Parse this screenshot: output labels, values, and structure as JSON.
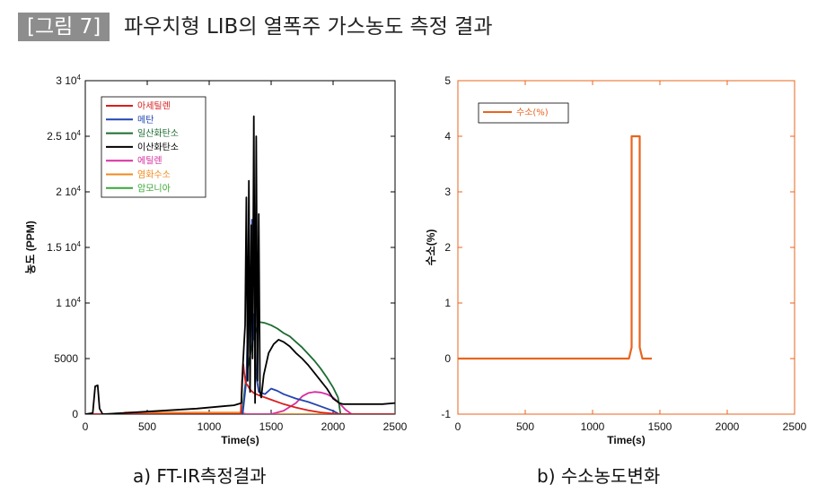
{
  "figure": {
    "tag": "[그림 7]",
    "title": "파우치형 LIB의 열폭주 가스농도 측정 결과",
    "caption_a": "a) FT-IR측정결과",
    "caption_b": "b) 수소농도변화"
  },
  "colors": {
    "acetylene": "#d81e1e",
    "methane": "#2245b0",
    "co": "#1e6b32",
    "co2": "#000000",
    "ethylene": "#d62ea0",
    "hcl": "#f08a1c",
    "nh3": "#3aa635",
    "hydrogen": "#e8641e"
  },
  "chart_data": [
    {
      "type": "line",
      "xlabel": "Time(s)",
      "ylabel": "농도 (PPM)",
      "xlim": [
        0,
        2500
      ],
      "ylim": [
        0,
        30000
      ],
      "xticks": [
        0,
        500,
        1000,
        1500,
        2000,
        2500
      ],
      "yticks": [
        {
          "v": 0,
          "label": "0"
        },
        {
          "v": 5000,
          "label": "5000"
        },
        {
          "v": 10000,
          "label": "1 10",
          "exp": "4"
        },
        {
          "v": 15000,
          "label": "1.5 10",
          "exp": "4"
        },
        {
          "v": 20000,
          "label": "2 10",
          "exp": "4"
        },
        {
          "v": 25000,
          "label": "2.5 10",
          "exp": "4"
        },
        {
          "v": 30000,
          "label": "3 10",
          "exp": "4"
        }
      ],
      "legend_position": "top-left",
      "series": [
        {
          "name": "아세틸렌",
          "color": "#d81e1e",
          "x": [
            0,
            1255,
            1265,
            1275,
            1285,
            1295,
            1310,
            1330,
            1360,
            1400,
            1500,
            1600,
            1700,
            1800,
            1900,
            2000,
            2050,
            2500
          ],
          "y": [
            0,
            0,
            3000,
            4500,
            3500,
            2800,
            2600,
            2200,
            1900,
            1700,
            1300,
            900,
            600,
            350,
            150,
            50,
            0,
            0
          ]
        },
        {
          "name": "메탄",
          "color": "#2245b0",
          "x": [
            0,
            1270,
            1300,
            1320,
            1330,
            1345,
            1350,
            1360,
            1380,
            1400,
            1450,
            1500,
            1550,
            1600,
            1700,
            1800,
            1900,
            2000,
            2050,
            2500
          ],
          "y": [
            0,
            0,
            3000,
            12000,
            5000,
            17500,
            6000,
            9000,
            3500,
            2000,
            1800,
            2300,
            2100,
            1800,
            1400,
            1100,
            700,
            300,
            0,
            0
          ]
        },
        {
          "name": "일산화탄소",
          "color": "#1e6b32",
          "x": [
            0,
            1265,
            1300,
            1350,
            1400,
            1450,
            1500,
            1550,
            1600,
            1650,
            1700,
            1750,
            1800,
            1850,
            1900,
            1950,
            2000,
            2040,
            2060,
            2500
          ],
          "y": [
            0,
            0,
            3500,
            6500,
            8300,
            8200,
            8000,
            7700,
            7300,
            7000,
            6500,
            6000,
            5400,
            4800,
            4100,
            3300,
            2400,
            1500,
            0,
            0
          ]
        },
        {
          "name": "이산화탄소",
          "color": "#000000",
          "x": [
            0,
            60,
            80,
            100,
            115,
            140,
            300,
            600,
            900,
            1100,
            1200,
            1260,
            1270,
            1280,
            1290,
            1300,
            1310,
            1320,
            1330,
            1340,
            1350,
            1360,
            1370,
            1380,
            1390,
            1400,
            1410,
            1420,
            1440,
            1480,
            1520,
            1560,
            1600,
            1650,
            1700,
            1750,
            1800,
            1850,
            1900,
            1950,
            2000,
            2050,
            2080,
            2120,
            2200,
            2300,
            2400,
            2500
          ],
          "y": [
            0,
            100,
            2500,
            2600,
            500,
            0,
            100,
            300,
            500,
            700,
            800,
            1000,
            4000,
            6000,
            8000,
            19500,
            3000,
            21000,
            2000,
            17000,
            5000,
            26800,
            1000,
            25000,
            3000,
            18000,
            2000,
            1500,
            3500,
            5500,
            6300,
            6700,
            6500,
            6100,
            5500,
            5000,
            4400,
            3700,
            3000,
            2300,
            1400,
            1000,
            900,
            900,
            900,
            900,
            900,
            1000
          ]
        },
        {
          "name": "에틸렌",
          "color": "#d62ea0",
          "x": [
            0,
            1500,
            1600,
            1700,
            1750,
            1800,
            1850,
            1900,
            1950,
            2000,
            2050,
            2100,
            2150,
            2500
          ],
          "y": [
            0,
            0,
            300,
            1000,
            1600,
            1900,
            2000,
            1950,
            1800,
            1500,
            1000,
            400,
            0,
            0
          ]
        },
        {
          "name": "염화수소",
          "color": "#f08a1c",
          "x": [
            0,
            300,
            320,
            1260,
            1300,
            2500
          ],
          "y": [
            0,
            0,
            150,
            150,
            0,
            0
          ]
        },
        {
          "name": "암모니아",
          "color": "#3aa635",
          "x": [
            0,
            2500
          ],
          "y": [
            0,
            0
          ]
        }
      ]
    },
    {
      "type": "line",
      "xlabel": "Time(s)",
      "ylabel": "수소(%)",
      "xlim": [
        0,
        2500
      ],
      "ylim": [
        -1,
        5
      ],
      "xticks": [
        0,
        500,
        1000,
        1500,
        2000,
        2500
      ],
      "yticks": [
        -1,
        0,
        1,
        2,
        3,
        4,
        5
      ],
      "legend_position": "top-left",
      "series": [
        {
          "name": "수소(%)",
          "color": "#e8641e",
          "x": [
            0,
            1270,
            1290,
            1290,
            1350,
            1350,
            1370,
            1440
          ],
          "y": [
            0,
            0,
            0.2,
            4,
            4,
            0.2,
            0,
            0
          ]
        }
      ]
    }
  ]
}
